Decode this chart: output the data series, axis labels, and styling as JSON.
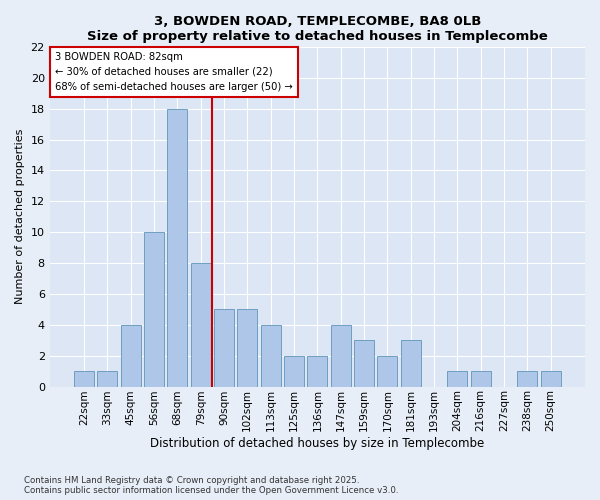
{
  "title1": "3, BOWDEN ROAD, TEMPLECOMBE, BA8 0LB",
  "title2": "Size of property relative to detached houses in Templecombe",
  "xlabel": "Distribution of detached houses by size in Templecombe",
  "ylabel": "Number of detached properties",
  "categories": [
    "22sqm",
    "33sqm",
    "45sqm",
    "56sqm",
    "68sqm",
    "79sqm",
    "90sqm",
    "102sqm",
    "113sqm",
    "125sqm",
    "136sqm",
    "147sqm",
    "159sqm",
    "170sqm",
    "181sqm",
    "193sqm",
    "204sqm",
    "216sqm",
    "227sqm",
    "238sqm",
    "250sqm"
  ],
  "values": [
    1,
    1,
    4,
    10,
    18,
    8,
    5,
    5,
    4,
    2,
    2,
    4,
    3,
    2,
    3,
    0,
    1,
    1,
    0,
    1,
    1
  ],
  "bar_color": "#aec6e8",
  "bar_edge_color": "#6e9ec0",
  "ylim": [
    0,
    22
  ],
  "yticks": [
    0,
    2,
    4,
    6,
    8,
    10,
    12,
    14,
    16,
    18,
    20,
    22
  ],
  "vline_color": "#cc0000",
  "vline_index": 5,
  "annotation_text": "3 BOWDEN ROAD: 82sqm\n← 30% of detached houses are smaller (22)\n68% of semi-detached houses are larger (50) →",
  "bg_color": "#dce6f5",
  "fig_bg_color": "#e8eef7",
  "grid_color": "#ffffff",
  "footer1": "Contains HM Land Registry data © Crown copyright and database right 2025.",
  "footer2": "Contains public sector information licensed under the Open Government Licence v3.0."
}
